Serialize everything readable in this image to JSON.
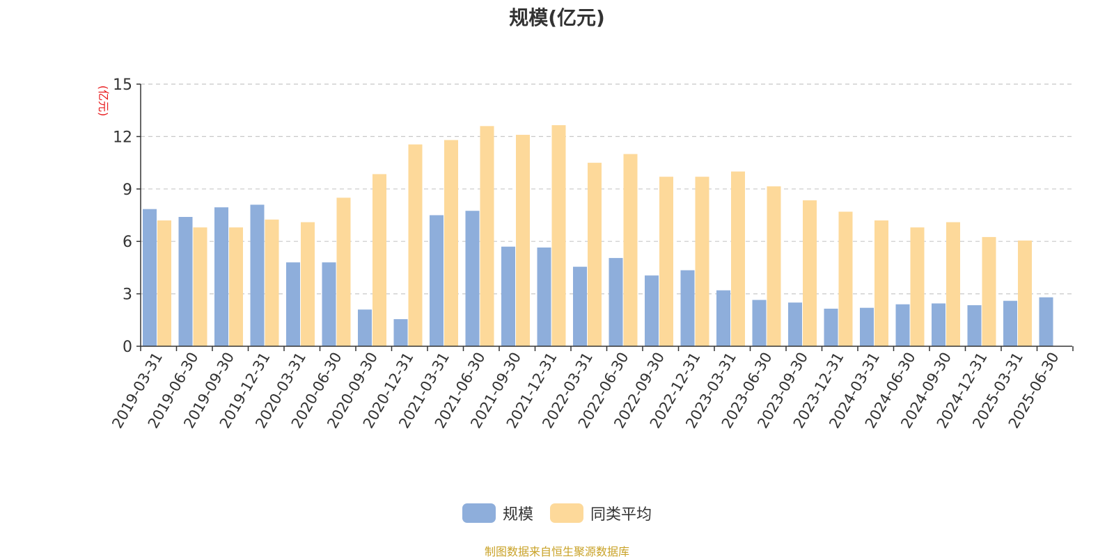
{
  "chart_data": {
    "type": "bar",
    "title": "规模(亿元)",
    "ylabel": "(亿元)",
    "xlabel": "",
    "ylim": [
      0,
      15
    ],
    "yticks": [
      0,
      3,
      6,
      9,
      12,
      15
    ],
    "grid": true,
    "legend_position": "bottom-center",
    "categories": [
      "2019-03-31",
      "2019-06-30",
      "2019-09-30",
      "2019-12-31",
      "2020-03-31",
      "2020-06-30",
      "2020-09-30",
      "2020-12-31",
      "2021-03-31",
      "2021-06-30",
      "2021-09-30",
      "2021-12-31",
      "2022-03-31",
      "2022-06-30",
      "2022-09-30",
      "2022-12-31",
      "2023-03-31",
      "2023-06-30",
      "2023-09-30",
      "2023-12-31",
      "2024-03-31",
      "2024-06-30",
      "2024-09-30",
      "2024-12-31",
      "2025-03-31",
      "2025-06-30"
    ],
    "series": [
      {
        "name": "规模",
        "color": "#8eaedb",
        "values": [
          7.85,
          7.4,
          7.95,
          8.1,
          4.8,
          4.8,
          2.1,
          1.55,
          7.5,
          7.75,
          5.7,
          5.65,
          4.55,
          5.05,
          4.05,
          4.35,
          3.2,
          2.65,
          2.5,
          2.15,
          2.2,
          2.4,
          2.45,
          2.35,
          2.6,
          2.8
        ]
      },
      {
        "name": "同类平均",
        "color": "#fdd99a",
        "values": [
          7.2,
          6.8,
          6.8,
          7.25,
          7.1,
          8.5,
          9.85,
          11.55,
          11.8,
          12.6,
          12.1,
          12.65,
          10.5,
          11.0,
          9.7,
          9.7,
          10.0,
          9.15,
          8.35,
          7.7,
          7.2,
          6.8,
          7.1,
          6.25,
          6.05,
          null
        ]
      }
    ]
  },
  "source_note": "制图数据来自恒生聚源数据库"
}
